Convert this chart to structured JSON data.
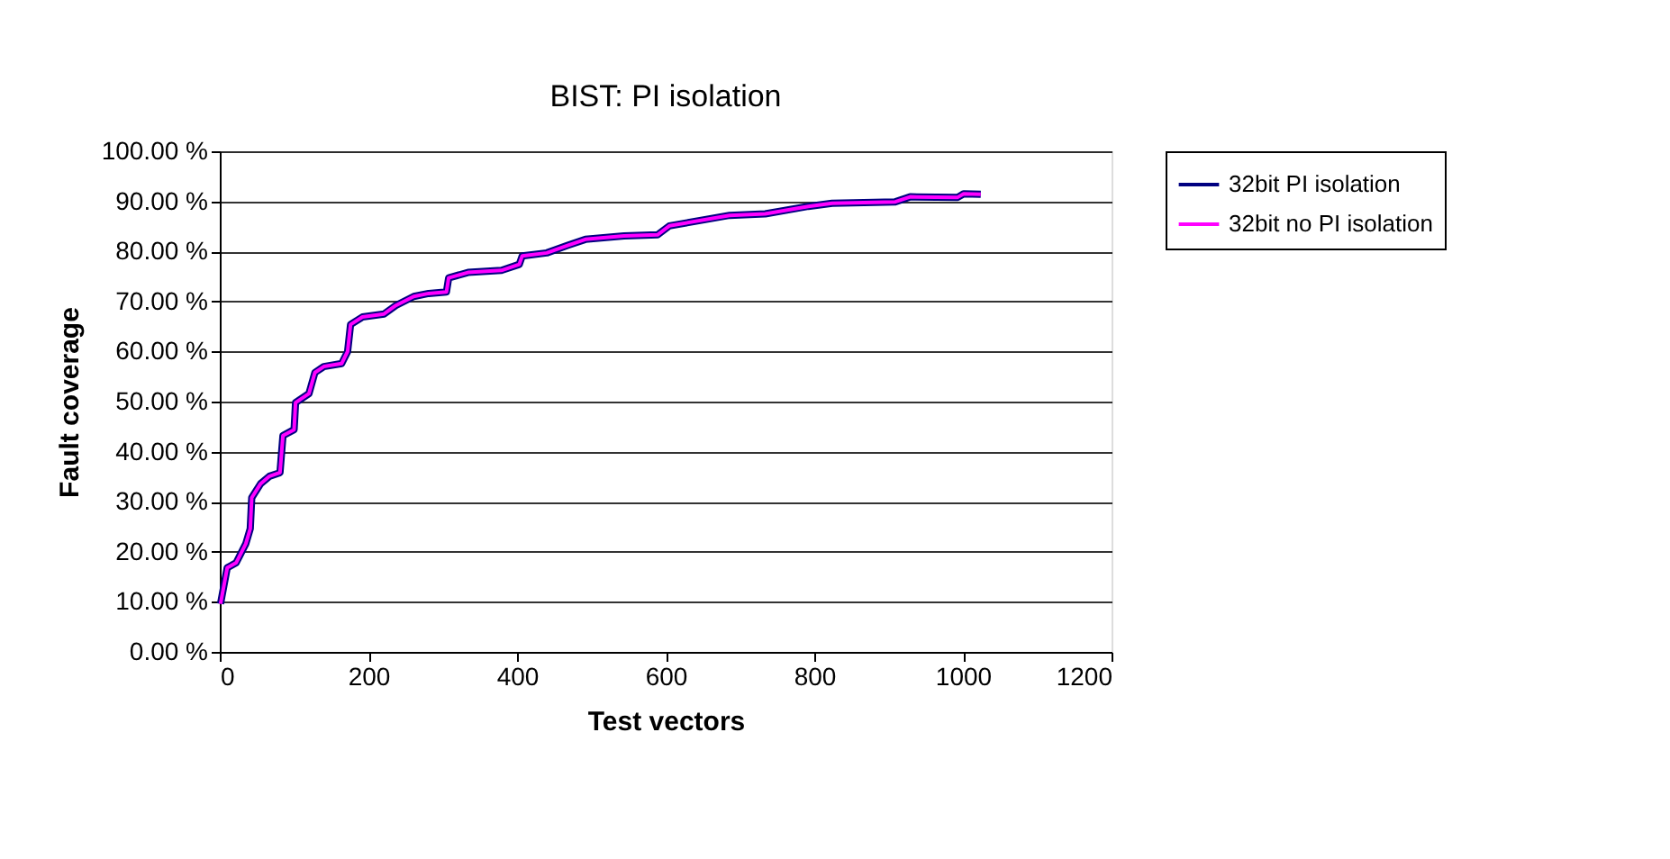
{
  "chart_data": {
    "type": "line",
    "title": "BIST: PI isolation",
    "xlabel": "Test vectors",
    "ylabel": "Fault coverage",
    "x": [
      1,
      10,
      22,
      35,
      41,
      43,
      55,
      67,
      81,
      85,
      100,
      102,
      120,
      128,
      140,
      164,
      172,
      176,
      192,
      221,
      237,
      261,
      281,
      305,
      308,
      334,
      379,
      403,
      407,
      440,
      468,
      492,
      544,
      589,
      605,
      686,
      734,
      792,
      824,
      909,
      929,
      993,
      1001,
      1024
    ],
    "series": [
      {
        "name": "32bit PI isolation",
        "color": "#000080",
        "values": [
          9.6,
          16.8,
          17.8,
          21.6,
          24.6,
          30.8,
          33.6,
          35.1,
          35.8,
          43.2,
          44.4,
          49.8,
          51.6,
          55.8,
          57.0,
          57.6,
          60.0,
          65.4,
          66.9,
          67.5,
          69.2,
          71.0,
          71.6,
          71.9,
          74.7,
          75.8,
          76.2,
          77.4,
          79.1,
          79.7,
          81.2,
          82.4,
          83.1,
          83.3,
          85.1,
          87.2,
          87.5,
          89.0,
          89.6,
          89.9,
          90.9,
          90.8,
          91.5,
          91.4
        ]
      },
      {
        "name": "32bit no PI isolation",
        "color": "#ff00ff",
        "values": [
          9.6,
          16.8,
          17.8,
          21.6,
          24.6,
          30.8,
          33.6,
          35.1,
          35.8,
          43.2,
          44.4,
          49.8,
          51.6,
          55.8,
          57.0,
          57.6,
          60.0,
          65.4,
          66.9,
          67.5,
          69.2,
          71.0,
          71.6,
          71.9,
          74.7,
          75.8,
          76.2,
          77.4,
          79.1,
          79.7,
          81.2,
          82.4,
          83.1,
          83.3,
          85.1,
          87.2,
          87.5,
          89.0,
          89.6,
          89.9,
          90.9,
          90.8,
          91.5,
          91.4
        ]
      }
    ],
    "xlim": [
      0,
      1200
    ],
    "xticks": [
      0,
      200,
      400,
      600,
      800,
      1000,
      1200
    ],
    "ylim": [
      0,
      100
    ],
    "yticks": [
      {
        "value": 0,
        "label": "0.00 %"
      },
      {
        "value": 10,
        "label": "10.00 %"
      },
      {
        "value": 20,
        "label": "20.00 %"
      },
      {
        "value": 30,
        "label": "30.00 %"
      },
      {
        "value": 40,
        "label": "40.00 %"
      },
      {
        "value": 50,
        "label": "50.00 %"
      },
      {
        "value": 60,
        "label": "60.00 %"
      },
      {
        "value": 70,
        "label": "70.00 %"
      },
      {
        "value": 80,
        "label": "80.00 %"
      },
      {
        "value": 90,
        "label": "90.00 %"
      },
      {
        "value": 100,
        "label": "100.00 %"
      }
    ],
    "grid": "y",
    "legend": "right",
    "marker": "none",
    "line_style": "solid"
  }
}
